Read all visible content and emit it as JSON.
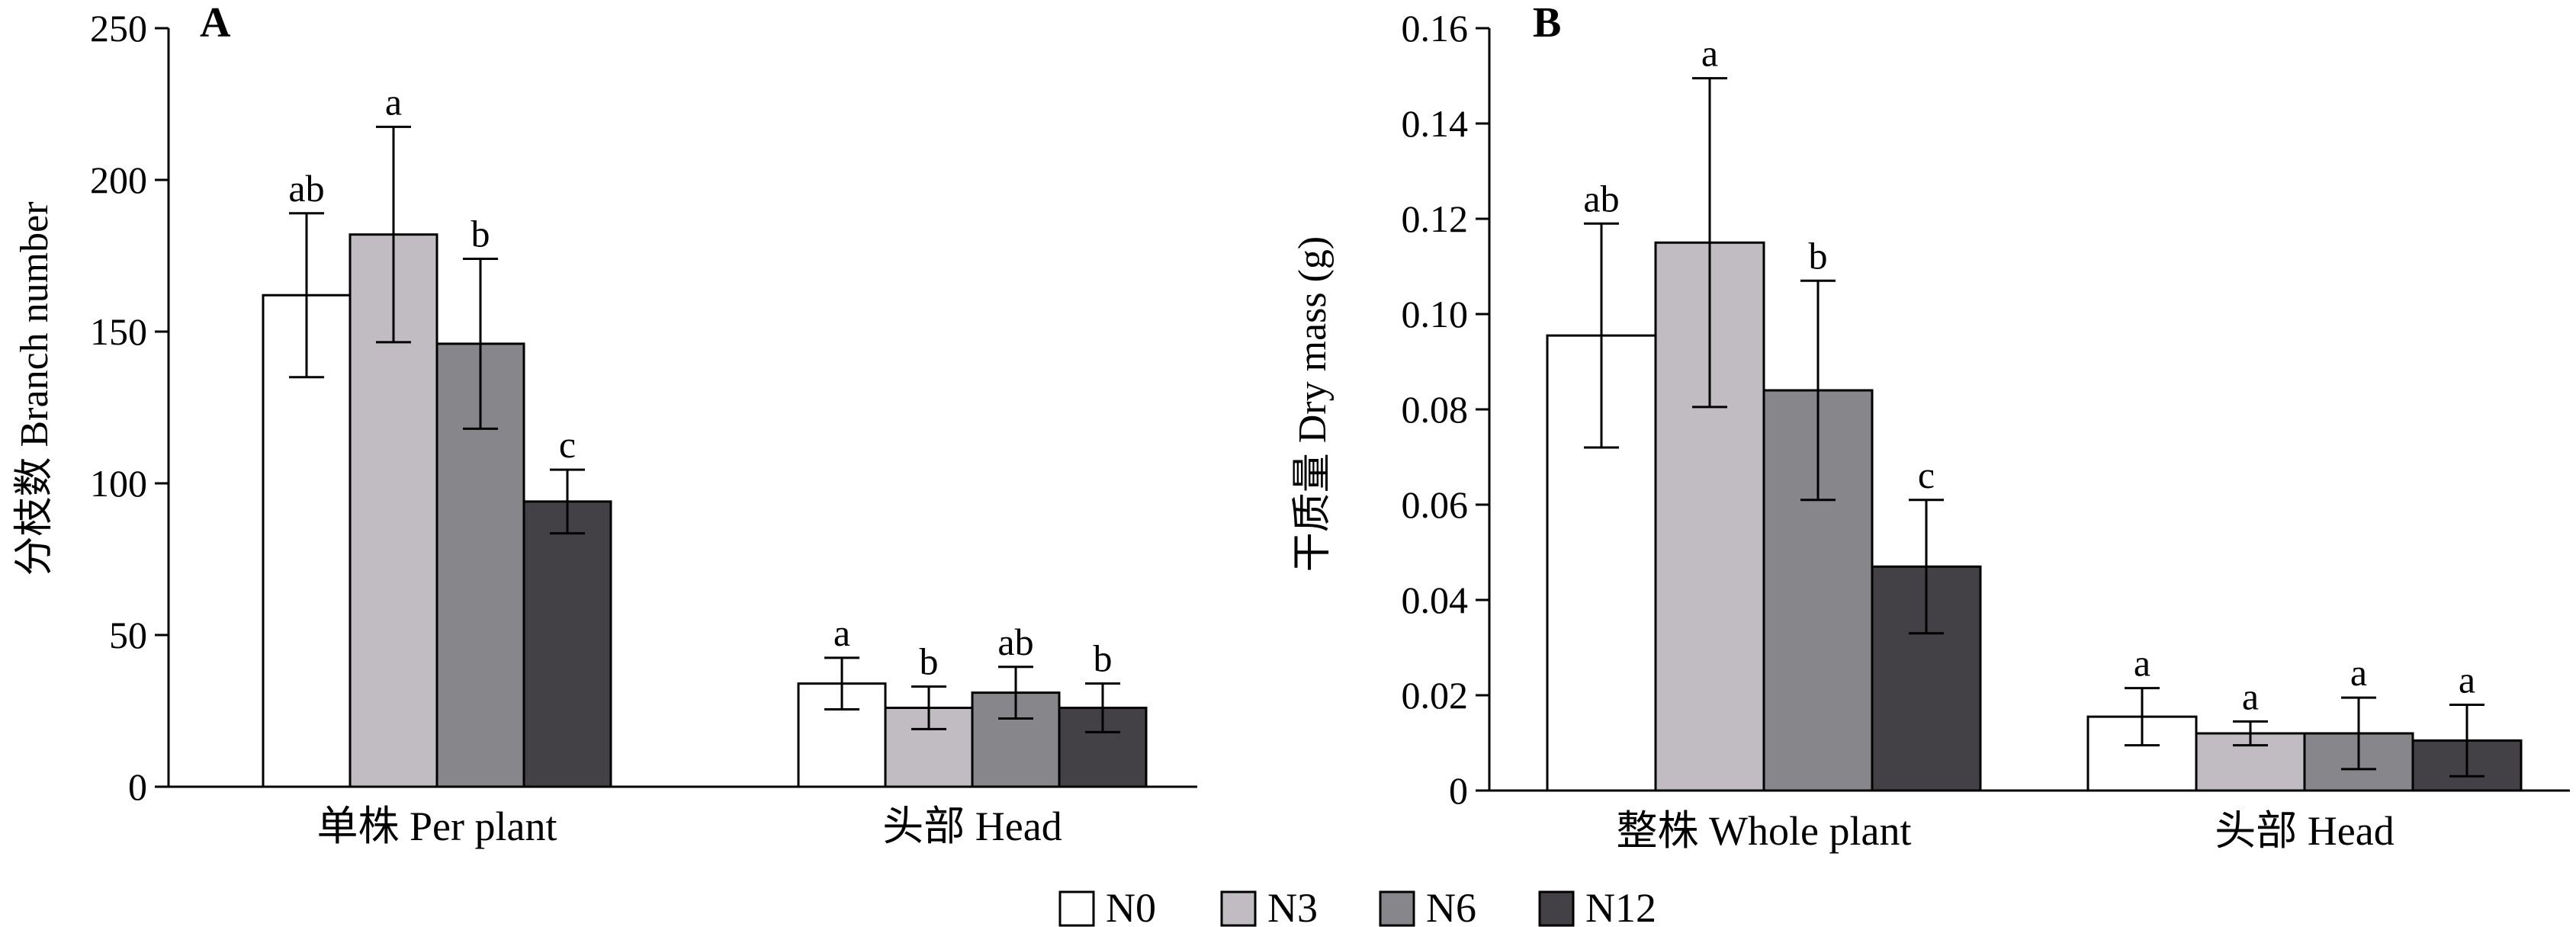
{
  "chart_data": [
    {
      "panel": "A",
      "type": "bar",
      "ylabel": "分枝数 Branch number",
      "ylim": [
        0,
        250
      ],
      "yticks": [
        "0",
        "50",
        "100",
        "150",
        "200",
        "250"
      ],
      "categories": [
        "单株 Per plant",
        "头部 Head"
      ],
      "series": [
        {
          "name": "N0",
          "values": [
            162,
            34
          ],
          "errors": [
            27,
            8.5
          ],
          "sig": [
            "ab",
            "a"
          ]
        },
        {
          "name": "N3",
          "values": [
            182,
            26
          ],
          "errors": [
            35.5,
            7
          ],
          "sig": [
            "a",
            "b"
          ]
        },
        {
          "name": "N6",
          "values": [
            146,
            31
          ],
          "errors": [
            28,
            8.5
          ],
          "sig": [
            "b",
            "ab"
          ]
        },
        {
          "name": "N12",
          "values": [
            94,
            26
          ],
          "errors": [
            10.5,
            8
          ],
          "sig": [
            "c",
            "b"
          ]
        }
      ]
    },
    {
      "panel": "B",
      "type": "bar",
      "ylabel": "干质量 Dry mass (g)",
      "ylim": [
        0,
        0.16
      ],
      "yticks": [
        "0",
        "0.02",
        "0.04",
        "0.06",
        "0.08",
        "0.10",
        "0.12",
        "0.14",
        "0.16"
      ],
      "categories": [
        "整株 Whole plant",
        "头部 Head"
      ],
      "series": [
        {
          "name": "N0",
          "values": [
            0.0955,
            0.0155
          ],
          "errors": [
            0.0235,
            0.006
          ],
          "sig": [
            "ab",
            "a"
          ]
        },
        {
          "name": "N3",
          "values": [
            0.115,
            0.012
          ],
          "errors": [
            0.0345,
            0.0025
          ],
          "sig": [
            "a",
            "a"
          ]
        },
        {
          "name": "N6",
          "values": [
            0.084,
            0.012
          ],
          "errors": [
            0.023,
            0.0075
          ],
          "sig": [
            "b",
            "a"
          ]
        },
        {
          "name": "N12",
          "values": [
            0.047,
            0.0105
          ],
          "errors": [
            0.014,
            0.0075
          ],
          "sig": [
            "c",
            "a"
          ]
        }
      ]
    }
  ],
  "legend": {
    "items": [
      "N0",
      "N3",
      "N6",
      "N12"
    ],
    "placement": "bottom-center"
  },
  "colors": {
    "N0": "#ffffff",
    "N3": "#c0bcc1",
    "N6": "#87868b",
    "N12": "#434145"
  }
}
